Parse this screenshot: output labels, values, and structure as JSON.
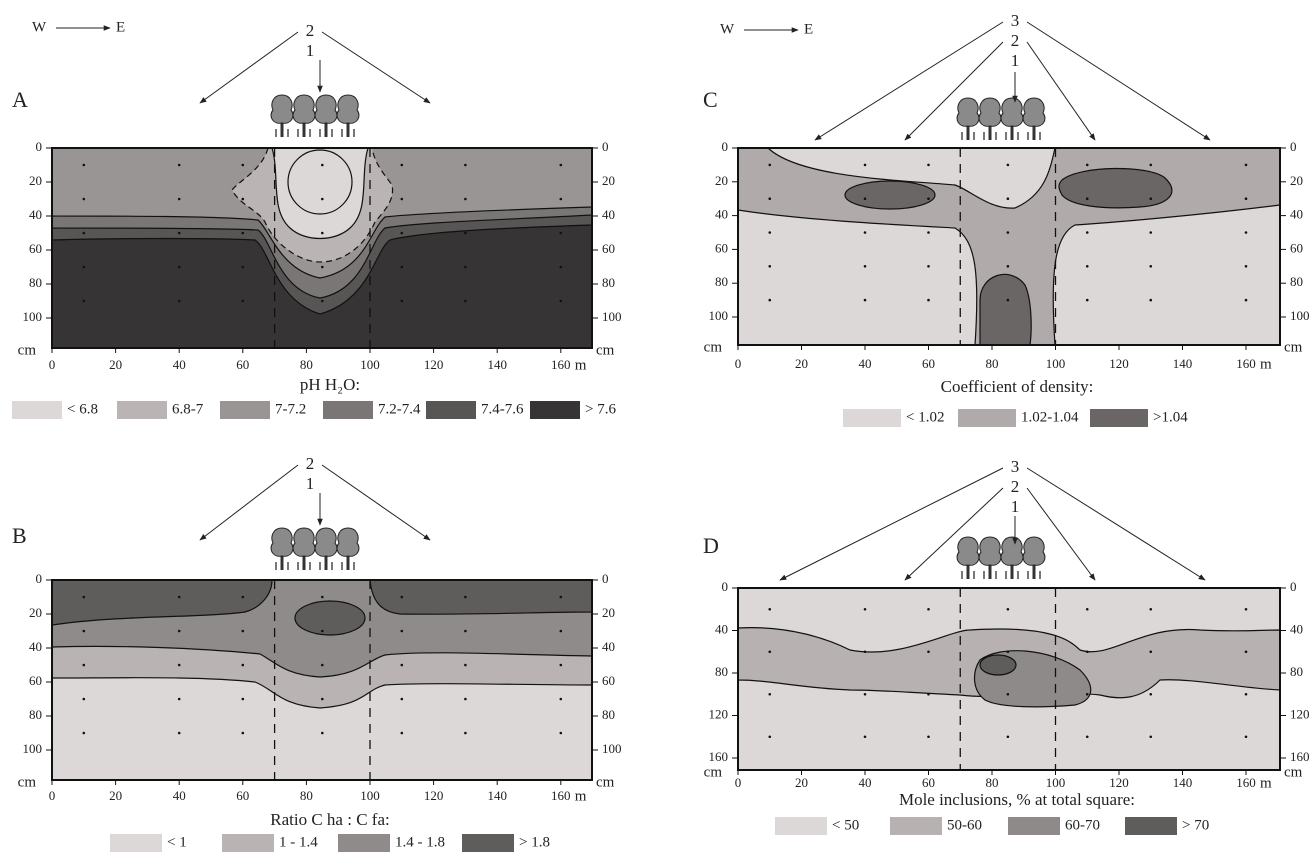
{
  "panels": [
    {
      "letter": "A",
      "direction": {
        "from": "W",
        "to": "E"
      },
      "markers": [
        "2",
        "1"
      ],
      "y_ticks": [
        0,
        20,
        40,
        60,
        80,
        100
      ],
      "y_unit": "cm",
      "x_ticks": [
        0,
        20,
        40,
        60,
        80,
        100,
        120,
        140,
        160
      ],
      "x_unit": "m",
      "legend_title": "pH H₂O:",
      "legend": [
        {
          "label": "< 6.8",
          "color": "#dcd8d8"
        },
        {
          "label": "6.8-7",
          "color": "#bab4b4"
        },
        {
          "label": "7-7.2",
          "color": "#9a9595"
        },
        {
          "label": "7.2-7.4",
          "color": "#7a7676"
        },
        {
          "label": "7.4-7.6",
          "color": "#585555"
        },
        {
          "label": "> 7.6",
          "color": "#363434"
        }
      ]
    },
    {
      "letter": "B",
      "markers": [
        "2",
        "1"
      ],
      "y_ticks": [
        0,
        20,
        40,
        60,
        80,
        100
      ],
      "y_unit": "cm",
      "x_ticks": [
        0,
        20,
        40,
        60,
        80,
        100,
        120,
        140,
        160
      ],
      "x_unit": "m",
      "legend_title": "Ratio C ha : C fa:",
      "legend": [
        {
          "label": "< 1",
          "color": "#dcd8d8"
        },
        {
          "label": "1 - 1.4",
          "color": "#b9b3b3"
        },
        {
          "label": "1.4 - 1.8",
          "color": "#8f8b8b"
        },
        {
          "label": "> 1.8",
          "color": "#5f5c5c"
        }
      ]
    },
    {
      "letter": "C",
      "direction": {
        "from": "W",
        "to": "E"
      },
      "markers": [
        "3",
        "2",
        "1"
      ],
      "y_ticks": [
        0,
        20,
        40,
        60,
        80,
        100
      ],
      "y_unit": "cm",
      "x_ticks": [
        0,
        20,
        40,
        60,
        80,
        100,
        120,
        140,
        160
      ],
      "x_unit": "m",
      "legend_title": "Coefficient of density:",
      "legend": [
        {
          "label": "< 1.02",
          "color": "#dcd8d8"
        },
        {
          "label": "1.02-1.04",
          "color": "#b0aaaa"
        },
        {
          "label": ">1.04",
          "color": "#6a6666"
        }
      ]
    },
    {
      "letter": "D",
      "markers": [
        "3",
        "2",
        "1"
      ],
      "y_ticks": [
        0,
        40,
        80,
        120,
        160
      ],
      "y_unit": "cm",
      "x_ticks": [
        0,
        20,
        40,
        60,
        80,
        100,
        120,
        140,
        160
      ],
      "x_unit": "m",
      "legend_title": "Mole inclusions, % at total square:",
      "legend": [
        {
          "label": "< 50",
          "color": "#dcd8d8"
        },
        {
          "label": "50-60",
          "color": "#b7b1b1"
        },
        {
          "label": "60-70",
          "color": "#8f8a8a"
        },
        {
          "label": "> 70",
          "color": "#5f5c5c"
        }
      ]
    }
  ]
}
